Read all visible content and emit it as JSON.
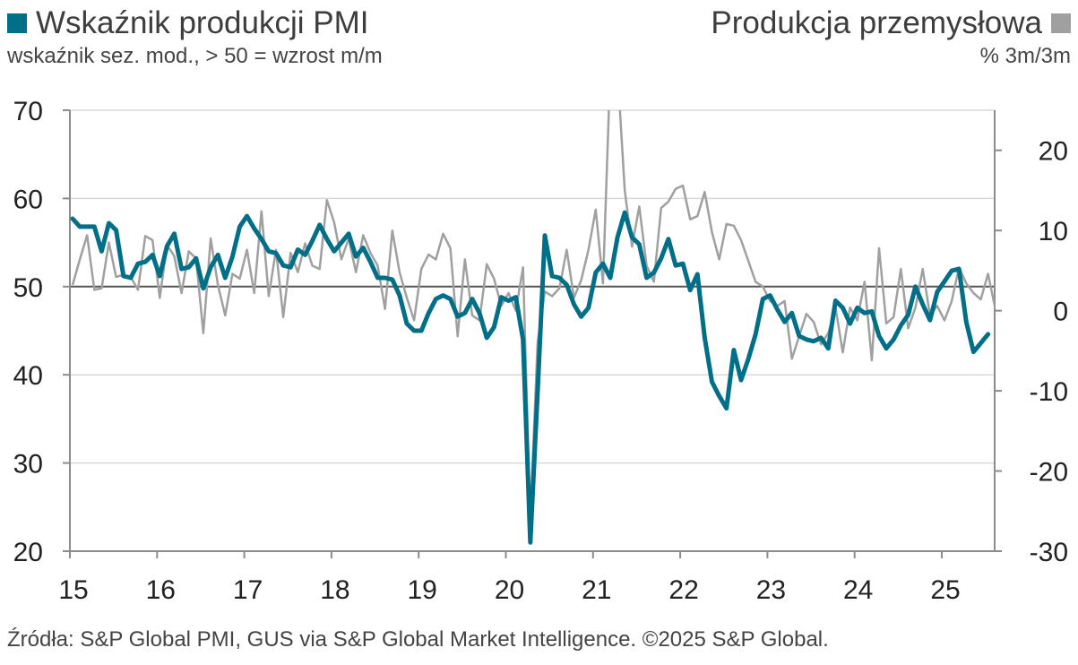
{
  "legend": {
    "left_title": "Wskaźnik produkcji PMI",
    "left_subtitle": "wskaźnik sez. mod., > 50 = wzrost m/m",
    "right_title": "Produkcja przemysłowa",
    "right_subtitle": "% 3m/3m"
  },
  "source": "Źródła: S&P Global PMI, GUS via S&P Global Market Intelligence. ©2025 S&P Global.",
  "colors": {
    "pmi": "#006f87",
    "production": "#a0a0a0",
    "grid": "#d9d9d9",
    "axis": "#8c8c8c",
    "ref": "#555555"
  },
  "chart_data": {
    "type": "line",
    "x_start": "2015-01",
    "x_tick_labels": [
      "15",
      "16",
      "17",
      "18",
      "19",
      "20",
      "21",
      "22",
      "23",
      "24",
      "25"
    ],
    "left_axis": {
      "ylim": [
        20,
        70
      ],
      "ticks": [
        20,
        30,
        40,
        50,
        60,
        70
      ]
    },
    "right_axis": {
      "ylim": [
        -30,
        25
      ],
      "ticks": [
        -30,
        -20,
        -10,
        0,
        10,
        20
      ]
    },
    "reference_line_left": 50,
    "grid": "horizontal",
    "series": [
      {
        "name": "Wskaźnik produkcji PMI",
        "axis": "left",
        "values": [
          57.7,
          56.8,
          56.8,
          56.8,
          54.0,
          57.2,
          56.4,
          51.2,
          51.0,
          52.6,
          52.8,
          53.6,
          51.2,
          54.6,
          56.0,
          52.0,
          52.2,
          53.2,
          49.8,
          52.2,
          53.6,
          51.0,
          53.4,
          56.8,
          58.0,
          56.6,
          55.4,
          54.0,
          53.8,
          52.4,
          52.2,
          54.2,
          53.6,
          55.2,
          57.0,
          55.4,
          54.0,
          55.0,
          56.0,
          53.4,
          54.4,
          52.8,
          51.0,
          51.0,
          50.8,
          49.0,
          45.8,
          45.0,
          45.0,
          47.0,
          48.6,
          49.0,
          48.6,
          46.6,
          47.0,
          48.6,
          47.0,
          44.2,
          45.4,
          48.8,
          48.4,
          48.8,
          44.0,
          21.0,
          38.0,
          55.8,
          51.2,
          51.0,
          50.2,
          48.0,
          46.6,
          47.6,
          51.6,
          52.6,
          51.0,
          55.6,
          58.4,
          55.6,
          54.8,
          51.0,
          51.6,
          53.2,
          55.4,
          52.4,
          52.6,
          49.6,
          51.4,
          44.2,
          39.2,
          37.6,
          36.2,
          42.8,
          39.4,
          41.8,
          44.6,
          48.6,
          49.0,
          47.4,
          46.0,
          47.0,
          44.4,
          44.0,
          43.8,
          44.2,
          43.0,
          48.4,
          47.6,
          45.8,
          47.6,
          47.0,
          47.2,
          44.4,
          43.0,
          44.0,
          45.6,
          46.8,
          50.0,
          48.0,
          46.2,
          49.4,
          50.6,
          51.8,
          52.0,
          46.0,
          42.6,
          43.6,
          44.6
        ]
      },
      {
        "name": "Produkcja przemysłowa",
        "axis": "right",
        "values": [
          3.2,
          6.4,
          9.4,
          2.6,
          2.8,
          8.5,
          4.2,
          4.5,
          4.2,
          2.6,
          9.3,
          8.8,
          1.6,
          8.2,
          6.8,
          2.2,
          7.4,
          6.5,
          -2.8,
          9.0,
          3.2,
          -0.6,
          4.6,
          4.0,
          7.6,
          2.2,
          12.4,
          1.8,
          7.6,
          -0.8,
          7.2,
          4.8,
          8.4,
          5.6,
          5.2,
          13.8,
          11.0,
          6.4,
          9.0,
          4.8,
          9.4,
          7.2,
          5.6,
          0.2,
          10.0,
          4.8,
          1.6,
          -1.2,
          5.2,
          7.0,
          6.4,
          9.6,
          7.8,
          -3.2,
          6.4,
          -0.6,
          -1.2,
          5.8,
          4.0,
          0.6,
          2.2,
          0.0,
          5.4,
          -26.0,
          -4.0,
          2.4,
          1.8,
          2.8,
          7.6,
          1.6,
          3.8,
          7.6,
          12.6,
          3.4,
          30.0,
          30.0,
          15.0,
          8.0,
          13.0,
          5.6,
          3.6,
          12.8,
          13.6,
          15.2,
          15.6,
          11.4,
          11.8,
          14.8,
          9.8,
          6.4,
          10.8,
          10.6,
          8.8,
          6.2,
          3.6,
          3.0,
          1.2,
          0.6,
          1.2,
          -6.0,
          -3.2,
          -0.4,
          -1.4,
          -4.2,
          -2.8,
          0.4,
          -5.2,
          0.4,
          -1.2,
          3.6,
          -6.2,
          7.8,
          -1.6,
          -0.8,
          5.2,
          -2.2,
          0.4,
          5.2,
          -0.6,
          0.6,
          -1.2,
          1.2,
          5.4,
          3.4,
          2.2,
          1.4,
          4.6,
          0.2
        ]
      }
    ]
  }
}
